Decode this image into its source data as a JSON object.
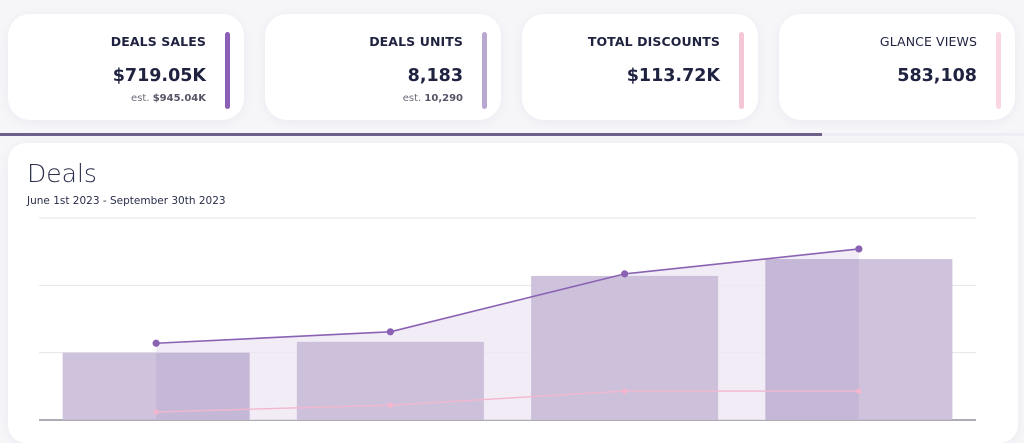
{
  "kpis": [
    {
      "label": "DEALS SALES",
      "value": "$719.05K",
      "est_prefix": "est.",
      "est_value": "$945.04K",
      "color": "#8a5fb5"
    },
    {
      "label": "DEALS UNITS",
      "value": "8,183",
      "est_prefix": "est.",
      "est_value": "10,290",
      "color": "#b9a8d2"
    },
    {
      "label": "TOTAL DISCOUNTS",
      "value": "$113.72K",
      "est_prefix": "",
      "est_value": "",
      "color": "#f5c6d6"
    },
    {
      "label": "GLANCE VIEWS",
      "value": "583,108",
      "est_prefix": "",
      "est_value": "",
      "color": "#f9d6e2"
    }
  ],
  "progress": {
    "fraction": 0.803,
    "color": "#6e6189"
  },
  "chart_title": "Deals",
  "chart_subtitle": "June 1st 2023 - September 30th 2023",
  "chart_data": {
    "type": "bar",
    "title": "Deals",
    "subtitle": "June 1st 2023 - September 30th 2023",
    "categories": [
      "",
      "",
      "",
      ""
    ],
    "ylim": [
      0,
      30
    ],
    "grid": true,
    "series": [
      {
        "kind": "bar",
        "values": [
          10,
          11.6,
          21.4,
          23.9
        ],
        "color": "#c9bbd8"
      },
      {
        "kind": "bar-overlay",
        "values": [
          10,
          0,
          0,
          23.9
        ],
        "color": "#bfb0d2"
      },
      {
        "kind": "line",
        "values": [
          11.4,
          13.1,
          21.7,
          25.4
        ],
        "color": "#8a62b3"
      },
      {
        "kind": "line",
        "values": [
          1.2,
          2.2,
          4.3,
          4.3
        ],
        "color": "#f2b7cf"
      }
    ]
  }
}
